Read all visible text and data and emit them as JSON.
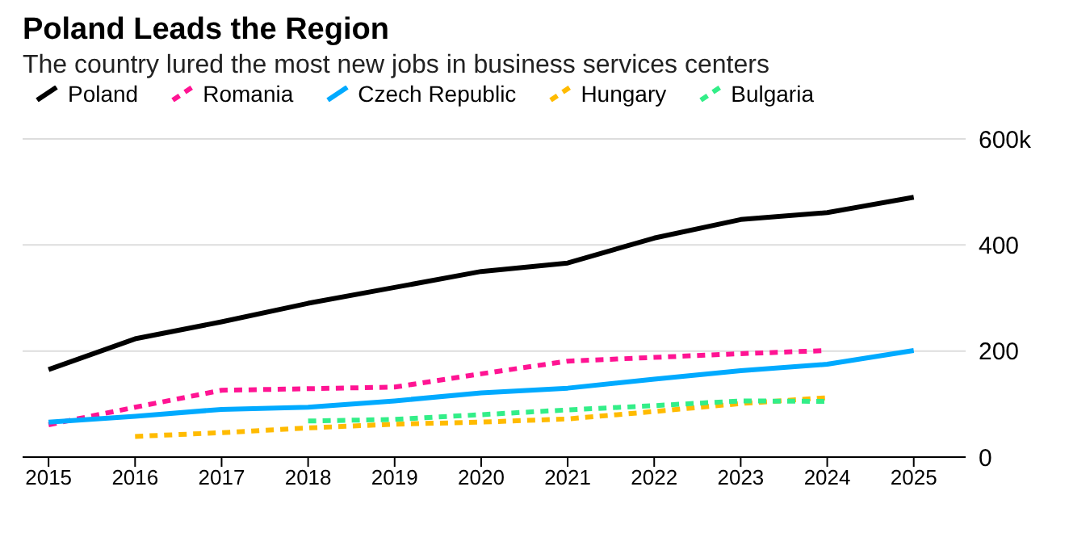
{
  "chart_data": {
    "type": "line",
    "title": "Poland Leads the Region",
    "subtitle": "The country lured the most new jobs in business services centers",
    "x": [
      2015,
      2016,
      2017,
      2018,
      2019,
      2020,
      2021,
      2022,
      2023,
      2024,
      2025
    ],
    "series": [
      {
        "name": "Poland",
        "color": "#000000",
        "line_style": "solid",
        "values": [
          165,
          223,
          255,
          290,
          320,
          350,
          366,
          413,
          448,
          461,
          490
        ]
      },
      {
        "name": "Romania",
        "color": "#ff1493",
        "line_style": "dashed",
        "values": [
          61,
          94,
          126,
          129,
          132,
          157,
          181,
          188,
          195,
          201,
          null
        ]
      },
      {
        "name": "Czech Republic",
        "color": "#00aaff",
        "line_style": "solid",
        "values": [
          66,
          77,
          90,
          94,
          106,
          121,
          130,
          147,
          163,
          175,
          201
        ]
      },
      {
        "name": "Hungary",
        "color": "#ffbb00",
        "line_style": "dashed",
        "values": [
          null,
          39,
          46,
          55,
          62,
          66,
          72,
          86,
          101,
          112,
          null
        ]
      },
      {
        "name": "Bulgaria",
        "color": "#33ee88",
        "line_style": "dashed",
        "values": [
          null,
          null,
          null,
          68,
          71,
          80,
          89,
          97,
          106,
          105,
          null
        ]
      }
    ],
    "xlim": [
      2014.7,
      2025.6
    ],
    "xticks": [
      2015,
      2016,
      2017,
      2018,
      2019,
      2020,
      2021,
      2022,
      2023,
      2024,
      2025
    ],
    "ylim": [
      0,
      600
    ],
    "yticks": [
      0,
      200,
      400,
      {
        "value": 600,
        "label": "600k"
      }
    ],
    "grid": "y",
    "legend": "top left",
    "marker": "none"
  }
}
